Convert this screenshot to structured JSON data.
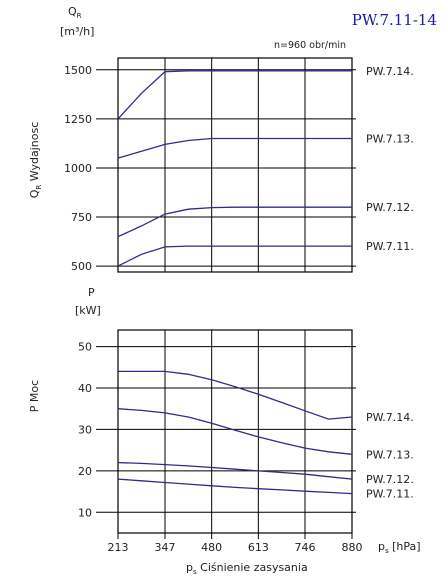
{
  "header": {
    "title": "PW.7.11-14",
    "speed_note": "n=960 obr/min"
  },
  "x_axis": {
    "symbol": "p",
    "symbol_sub": "s",
    "unit": "[hPa]",
    "label": "Ciśnienie zasysania",
    "ticks": [
      213,
      347,
      480,
      613,
      746,
      880
    ]
  },
  "chart_data": [
    {
      "type": "line",
      "ylabel_symbol": "Q",
      "ylabel_sub": "R",
      "ylabel_text": "Wydajnosc",
      "unit_symbol": "Q",
      "unit_sub": "R",
      "unit": "[m³/h]",
      "ylim": [
        470,
        1560
      ],
      "yticks": [
        500,
        750,
        1000,
        1250,
        1500
      ],
      "xlim": [
        213,
        880
      ],
      "grid": true,
      "series": [
        {
          "name": "PW.7.14.",
          "x": [
            213,
            280,
            347,
            413,
            480,
            547,
            613,
            680,
            746,
            813,
            880
          ],
          "values": [
            1250,
            1380,
            1490,
            1495,
            1495,
            1495,
            1495,
            1495,
            1495,
            1495,
            1495
          ]
        },
        {
          "name": "PW.7.13.",
          "x": [
            213,
            280,
            347,
            413,
            480,
            547,
            613,
            680,
            746,
            813,
            880
          ],
          "values": [
            1050,
            1085,
            1120,
            1140,
            1150,
            1150,
            1150,
            1150,
            1150,
            1150,
            1150
          ]
        },
        {
          "name": "PW.7.12.",
          "x": [
            213,
            280,
            347,
            413,
            480,
            547,
            613,
            680,
            746,
            813,
            880
          ],
          "values": [
            650,
            705,
            765,
            790,
            798,
            800,
            800,
            800,
            800,
            800,
            800
          ]
        },
        {
          "name": "PW.7.11.",
          "x": [
            213,
            280,
            347,
            413,
            480,
            547,
            613,
            680,
            746,
            813,
            880
          ],
          "values": [
            500,
            560,
            598,
            602,
            602,
            602,
            602,
            602,
            602,
            602,
            602
          ]
        }
      ]
    },
    {
      "type": "line",
      "ylabel_symbol": "P",
      "ylabel_sub": "",
      "ylabel_text": "Moc",
      "unit_symbol": "P",
      "unit_sub": "",
      "unit": "[kW]",
      "ylim": [
        5,
        54
      ],
      "yticks": [
        10,
        20,
        30,
        40,
        50
      ],
      "xlim": [
        213,
        880
      ],
      "grid": true,
      "series": [
        {
          "name": "PW.7.14.",
          "x": [
            213,
            280,
            347,
            413,
            480,
            547,
            613,
            680,
            746,
            813,
            880
          ],
          "values": [
            44,
            44,
            44,
            43.3,
            42,
            40.3,
            38.5,
            36.5,
            34.5,
            32.5,
            33
          ]
        },
        {
          "name": "PW.7.13.",
          "x": [
            213,
            280,
            347,
            413,
            480,
            547,
            613,
            680,
            746,
            813,
            880
          ],
          "values": [
            35,
            34.6,
            34,
            33,
            31.5,
            29.8,
            28.2,
            26.8,
            25.5,
            24.6,
            24
          ]
        },
        {
          "name": "PW.7.12.",
          "x": [
            213,
            280,
            347,
            413,
            480,
            547,
            613,
            680,
            746,
            813,
            880
          ],
          "values": [
            22,
            21.8,
            21.5,
            21.2,
            20.8,
            20.4,
            20,
            19.6,
            19.2,
            18.6,
            18
          ]
        },
        {
          "name": "PW.7.11.",
          "x": [
            213,
            280,
            347,
            413,
            480,
            547,
            613,
            680,
            746,
            813,
            880
          ],
          "values": [
            18,
            17.6,
            17.2,
            16.8,
            16.4,
            16,
            15.7,
            15.4,
            15.1,
            14.8,
            14.5
          ]
        }
      ]
    }
  ]
}
